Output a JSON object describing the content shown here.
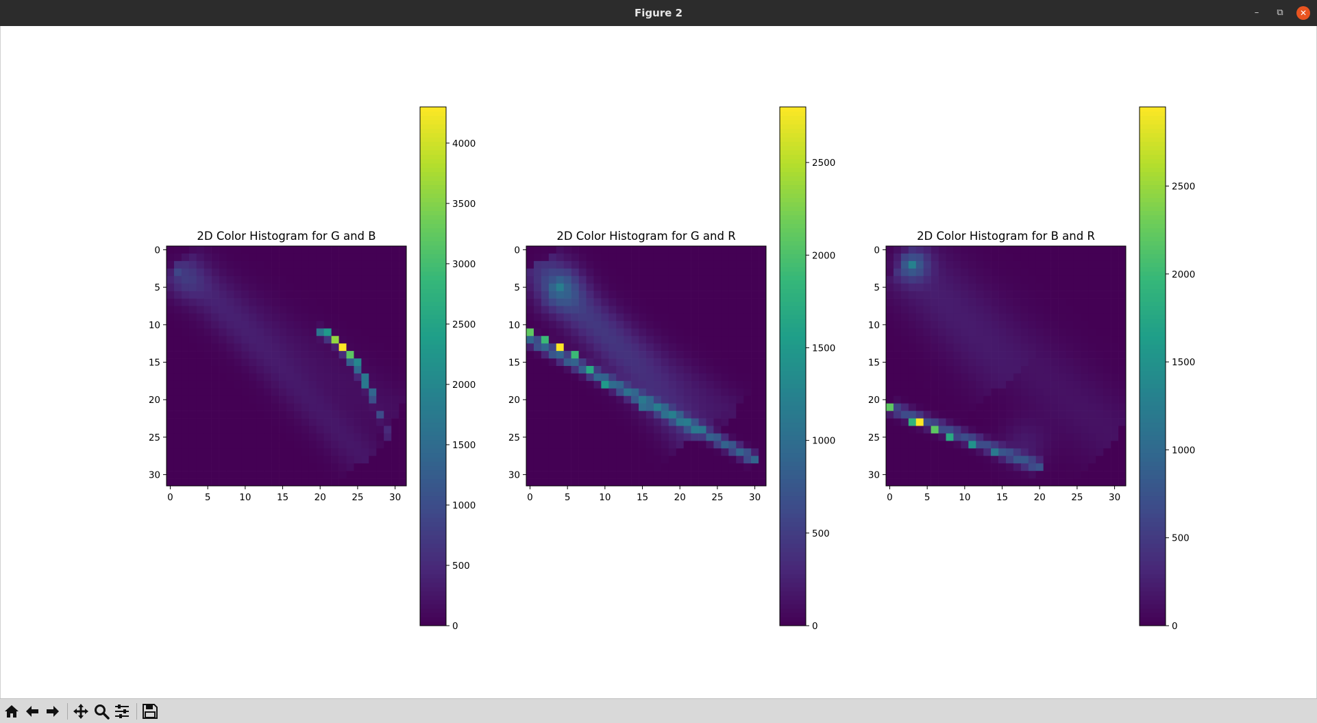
{
  "window": {
    "title": "Figure 2",
    "minimize_icon": "minimize-icon",
    "maximize_icon": "maximize-icon",
    "close_icon": "close-icon"
  },
  "toolbar": {
    "buttons": [
      {
        "name": "home-button",
        "icon": "home-icon"
      },
      {
        "name": "back-button",
        "icon": "arrow-left-icon"
      },
      {
        "name": "forward-button",
        "icon": "arrow-right-icon"
      },
      {
        "name": "pan-button",
        "icon": "move-icon"
      },
      {
        "name": "zoom-button",
        "icon": "magnifier-icon"
      },
      {
        "name": "configure-subplots-button",
        "icon": "sliders-icon"
      },
      {
        "name": "save-button",
        "icon": "floppy-disk-icon"
      }
    ]
  },
  "chart_data": [
    {
      "type": "heatmap",
      "title": "2D Color Histogram for G and B",
      "x_ticks": [
        "0",
        "5",
        "10",
        "15",
        "20",
        "25",
        "30"
      ],
      "y_ticks": [
        "0",
        "5",
        "10",
        "15",
        "20",
        "25",
        "30"
      ],
      "grid_size": [
        32,
        32
      ],
      "colormap": "viridis",
      "colorbar": {
        "min": 0,
        "max": 4300,
        "ticks": [
          "0",
          "500",
          "1000",
          "1500",
          "2000",
          "2500",
          "3000",
          "3500",
          "4000"
        ]
      },
      "peaks": [
        {
          "x": 23,
          "y": 13,
          "value": 4300
        },
        {
          "x": 22,
          "y": 12,
          "value": 3600
        },
        {
          "x": 24,
          "y": 14,
          "value": 3200
        },
        {
          "x": 21,
          "y": 11,
          "value": 2300
        },
        {
          "x": 25,
          "y": 15,
          "value": 2000
        },
        {
          "x": 26,
          "y": 17,
          "value": 1700
        },
        {
          "x": 27,
          "y": 19,
          "value": 1400
        },
        {
          "x": 1,
          "y": 3,
          "value": 900
        }
      ]
    },
    {
      "type": "heatmap",
      "title": "2D Color Histogram for G and R",
      "x_ticks": [
        "0",
        "5",
        "10",
        "15",
        "20",
        "25",
        "30"
      ],
      "y_ticks": [
        "0",
        "5",
        "10",
        "15",
        "20",
        "25",
        "30"
      ],
      "grid_size": [
        32,
        32
      ],
      "colormap": "viridis",
      "colorbar": {
        "min": 0,
        "max": 2800,
        "ticks": [
          "0",
          "500",
          "1000",
          "1500",
          "2000",
          "2500"
        ]
      },
      "peaks": [
        {
          "x": 4,
          "y": 13,
          "value": 2800
        },
        {
          "x": 0,
          "y": 11,
          "value": 2100
        },
        {
          "x": 2,
          "y": 12,
          "value": 1900
        },
        {
          "x": 6,
          "y": 14,
          "value": 1900
        },
        {
          "x": 8,
          "y": 16,
          "value": 1700
        },
        {
          "x": 10,
          "y": 18,
          "value": 1500
        },
        {
          "x": 4,
          "y": 5,
          "value": 1200
        },
        {
          "x": 15,
          "y": 21,
          "value": 1000
        }
      ]
    },
    {
      "type": "heatmap",
      "title": "2D Color Histogram for B and R",
      "x_ticks": [
        "0",
        "5",
        "10",
        "15",
        "20",
        "25",
        "30"
      ],
      "y_ticks": [
        "0",
        "5",
        "10",
        "15",
        "20",
        "25",
        "30"
      ],
      "grid_size": [
        32,
        32
      ],
      "colormap": "viridis",
      "colorbar": {
        "min": 0,
        "max": 2950,
        "ticks": [
          "0",
          "500",
          "1000",
          "1500",
          "2000",
          "2500"
        ]
      },
      "peaks": [
        {
          "x": 4,
          "y": 23,
          "value": 2950
        },
        {
          "x": 0,
          "y": 21,
          "value": 2200
        },
        {
          "x": 6,
          "y": 24,
          "value": 2200
        },
        {
          "x": 3,
          "y": 23,
          "value": 1900
        },
        {
          "x": 8,
          "y": 25,
          "value": 1800
        },
        {
          "x": 11,
          "y": 26,
          "value": 1500
        },
        {
          "x": 3,
          "y": 2,
          "value": 1300
        },
        {
          "x": 14,
          "y": 27,
          "value": 1200
        }
      ]
    }
  ]
}
